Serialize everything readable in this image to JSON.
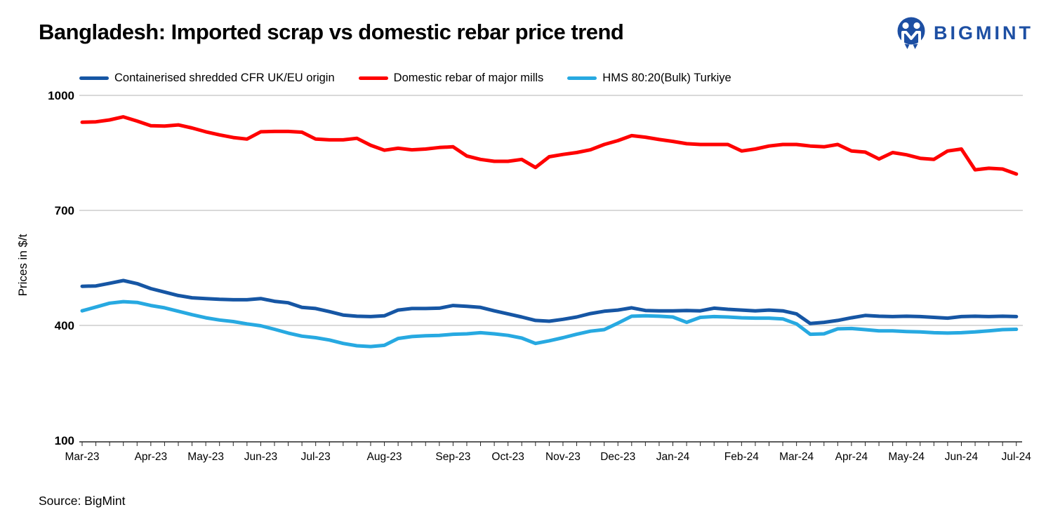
{
  "header": {
    "title": "Bangladesh: Imported scrap vs domestic rebar price trend",
    "logo_text": "BIGMINT"
  },
  "footer": {
    "source": "Source: BigMint"
  },
  "colors": {
    "logo_blue": "#1D4FA3",
    "grid": "#D9D9D9",
    "axis": "#262626",
    "text": "#000000"
  },
  "chart_data": {
    "type": "line",
    "title": "Bangladesh: Imported scrap vs domestic rebar price trend",
    "xlabel": "",
    "ylabel": "Prices in $/t",
    "ylim": [
      100,
      1000
    ],
    "y_ticks": [
      100,
      400,
      700,
      1000
    ],
    "grid": "horizontal",
    "grid_color": "#D9D9D9",
    "axis_color": "#262626",
    "legend_position": "top",
    "frequency": "weekly",
    "n_points": 69,
    "x_tick_labels": [
      "Mar-23",
      "Apr-23",
      "May-23",
      "Jun-23",
      "Jul-23",
      "Aug-23",
      "Sep-23",
      "Oct-23",
      "Nov-23",
      "Dec-23",
      "Jan-24",
      "Feb-24",
      "Mar-24",
      "Apr-24",
      "May-24",
      "Jun-24",
      "Jul-24"
    ],
    "month_label_indices": [
      0,
      5,
      9,
      13,
      17,
      22,
      27,
      31,
      35,
      39,
      43,
      48,
      52,
      56,
      60,
      64,
      68
    ],
    "series": [
      {
        "name": "Containerised shredded CFR UK/EU origin",
        "color": "#1656A4",
        "values": [
          502,
          503,
          510,
          517,
          509,
          496,
          487,
          478,
          472,
          470,
          468,
          467,
          467,
          470,
          463,
          459,
          447,
          444,
          436,
          427,
          424,
          423,
          425,
          440,
          444,
          444,
          445,
          452,
          450,
          447,
          438,
          430,
          422,
          413,
          411,
          416,
          422,
          431,
          437,
          440,
          446,
          439,
          438,
          438,
          439,
          438,
          445,
          442,
          440,
          438,
          440,
          438,
          430,
          405,
          408,
          413,
          420,
          426,
          424,
          423,
          424,
          423,
          421,
          419,
          423,
          424,
          423,
          424,
          423
        ]
      },
      {
        "name": "Domestic rebar of major mills",
        "color": "#FF0000",
        "values": [
          930,
          931,
          936,
          944,
          933,
          921,
          920,
          923,
          915,
          905,
          897,
          890,
          886,
          905,
          906,
          906,
          904,
          886,
          884,
          884,
          888,
          870,
          857,
          862,
          858,
          860,
          864,
          866,
          842,
          833,
          828,
          828,
          833,
          812,
          840,
          846,
          851,
          858,
          872,
          882,
          895,
          891,
          885,
          880,
          874,
          872,
          872,
          872,
          855,
          860,
          868,
          872,
          872,
          868,
          866,
          872,
          855,
          852,
          834,
          851,
          845,
          836,
          833,
          855,
          860,
          806,
          810,
          808,
          795
        ]
      },
      {
        "name": "HMS 80:20(Bulk) Turkiye",
        "color": "#27A9E1",
        "values": [
          438,
          448,
          458,
          462,
          460,
          452,
          446,
          437,
          428,
          420,
          414,
          410,
          404,
          399,
          390,
          380,
          372,
          368,
          362,
          353,
          347,
          345,
          348,
          366,
          371,
          373,
          374,
          377,
          378,
          381,
          378,
          374,
          367,
          353,
          360,
          368,
          377,
          385,
          389,
          406,
          424,
          425,
          424,
          422,
          408,
          421,
          423,
          422,
          420,
          419,
          419,
          417,
          404,
          377,
          378,
          391,
          392,
          389,
          386,
          386,
          384,
          383,
          381,
          380,
          381,
          383,
          386,
          389,
          390
        ]
      }
    ]
  }
}
